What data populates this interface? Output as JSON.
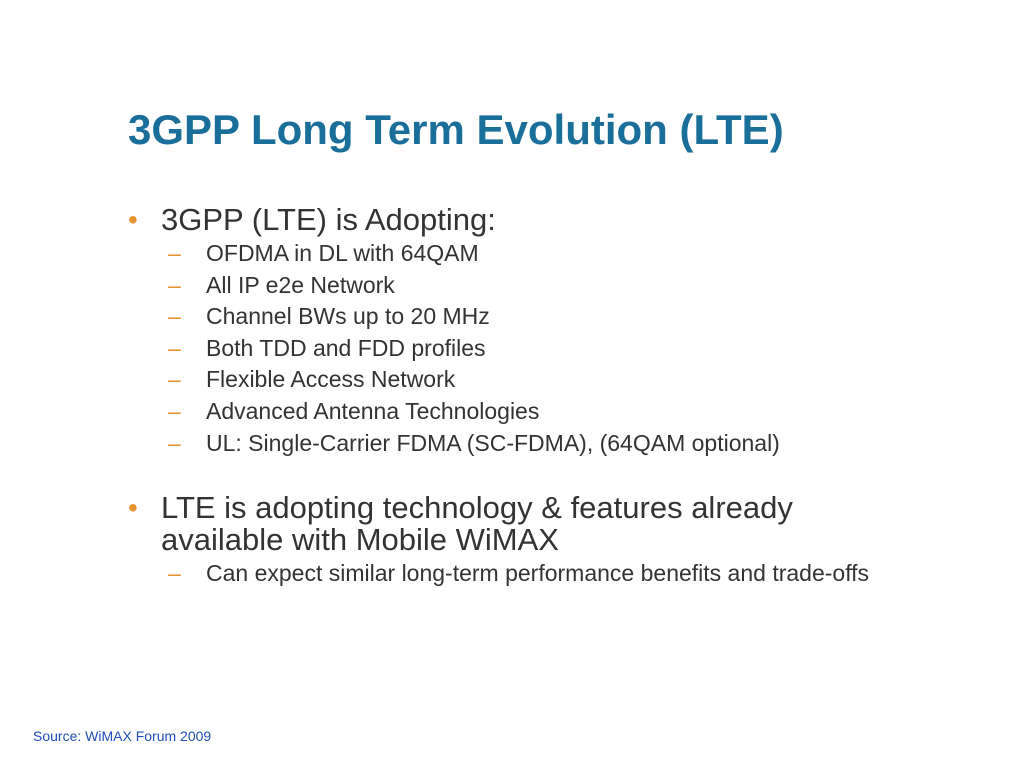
{
  "slide": {
    "title": "3GPP Long Term Evolution (LTE)",
    "bullet_marker": "•",
    "sub_marker": "–",
    "bullets": [
      {
        "text": "3GPP (LTE) is Adopting:",
        "subitems": [
          "OFDMA in DL with 64QAM",
          "All IP e2e Network",
          "Channel BWs up to 20 MHz",
          "Both TDD and FDD profiles",
          "Flexible Access Network",
          "Advanced Antenna Technologies",
          "UL: Single-Carrier FDMA (SC-FDMA), (64QAM optional)"
        ]
      },
      {
        "text": "LTE is adopting technology & features already available with Mobile WiMAX",
        "subitems": [
          "Can expect similar long-term performance benefits and trade-offs"
        ]
      }
    ],
    "source": "Source: WiMAX Forum 2009"
  },
  "colors": {
    "title": "#1a6e9a",
    "body_text": "#333333",
    "bullet_accent": "#e8922e",
    "source_text": "#1f4fb8"
  }
}
